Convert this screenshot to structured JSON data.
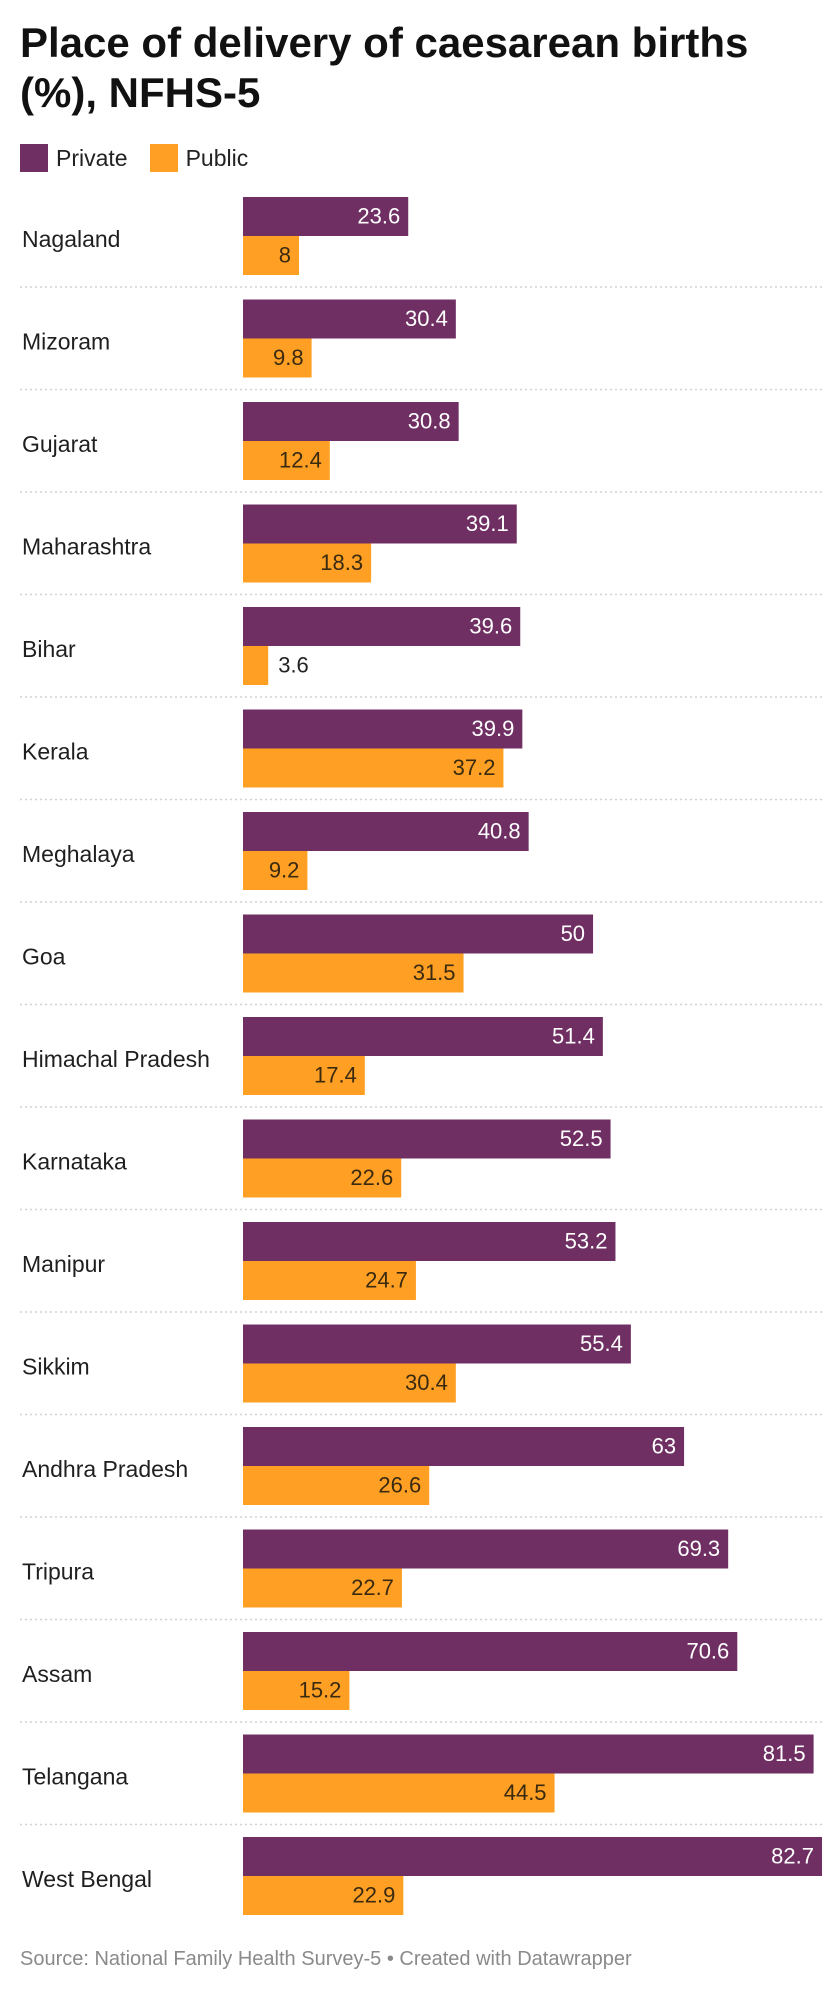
{
  "title": "Place of delivery of caesarean births (%), NFHS-5",
  "source_note": "Source: National Family Health Survey-5 • Created with Datawrapper",
  "colors": {
    "private": "#6f2f63",
    "public": "#ffa024"
  },
  "chart_data": {
    "type": "bar",
    "orientation": "horizontal",
    "title": "Place of delivery of caesarean births (%), NFHS-5",
    "categories": [
      "Nagaland",
      "Mizoram",
      "Gujarat",
      "Maharashtra",
      "Bihar",
      "Kerala",
      "Meghalaya",
      "Goa",
      "Himachal Pradesh",
      "Karnataka",
      "Manipur",
      "Sikkim",
      "Andhra Pradesh",
      "Tripura",
      "Assam",
      "Telangana",
      "West Bengal"
    ],
    "series": [
      {
        "name": "Private",
        "values": [
          23.6,
          30.4,
          30.8,
          39.1,
          39.6,
          39.9,
          40.8,
          50,
          51.4,
          52.5,
          53.2,
          55.4,
          63,
          69.3,
          70.6,
          81.5,
          82.7
        ]
      },
      {
        "name": "Public",
        "values": [
          8,
          9.8,
          12.4,
          18.3,
          3.6,
          37.2,
          9.2,
          31.5,
          17.4,
          22.6,
          24.7,
          30.4,
          26.6,
          22.7,
          15.2,
          44.5,
          22.9
        ]
      }
    ],
    "xlim": [
      0,
      82.7
    ],
    "legend": "top-left",
    "grid": false,
    "data_labels": true
  }
}
